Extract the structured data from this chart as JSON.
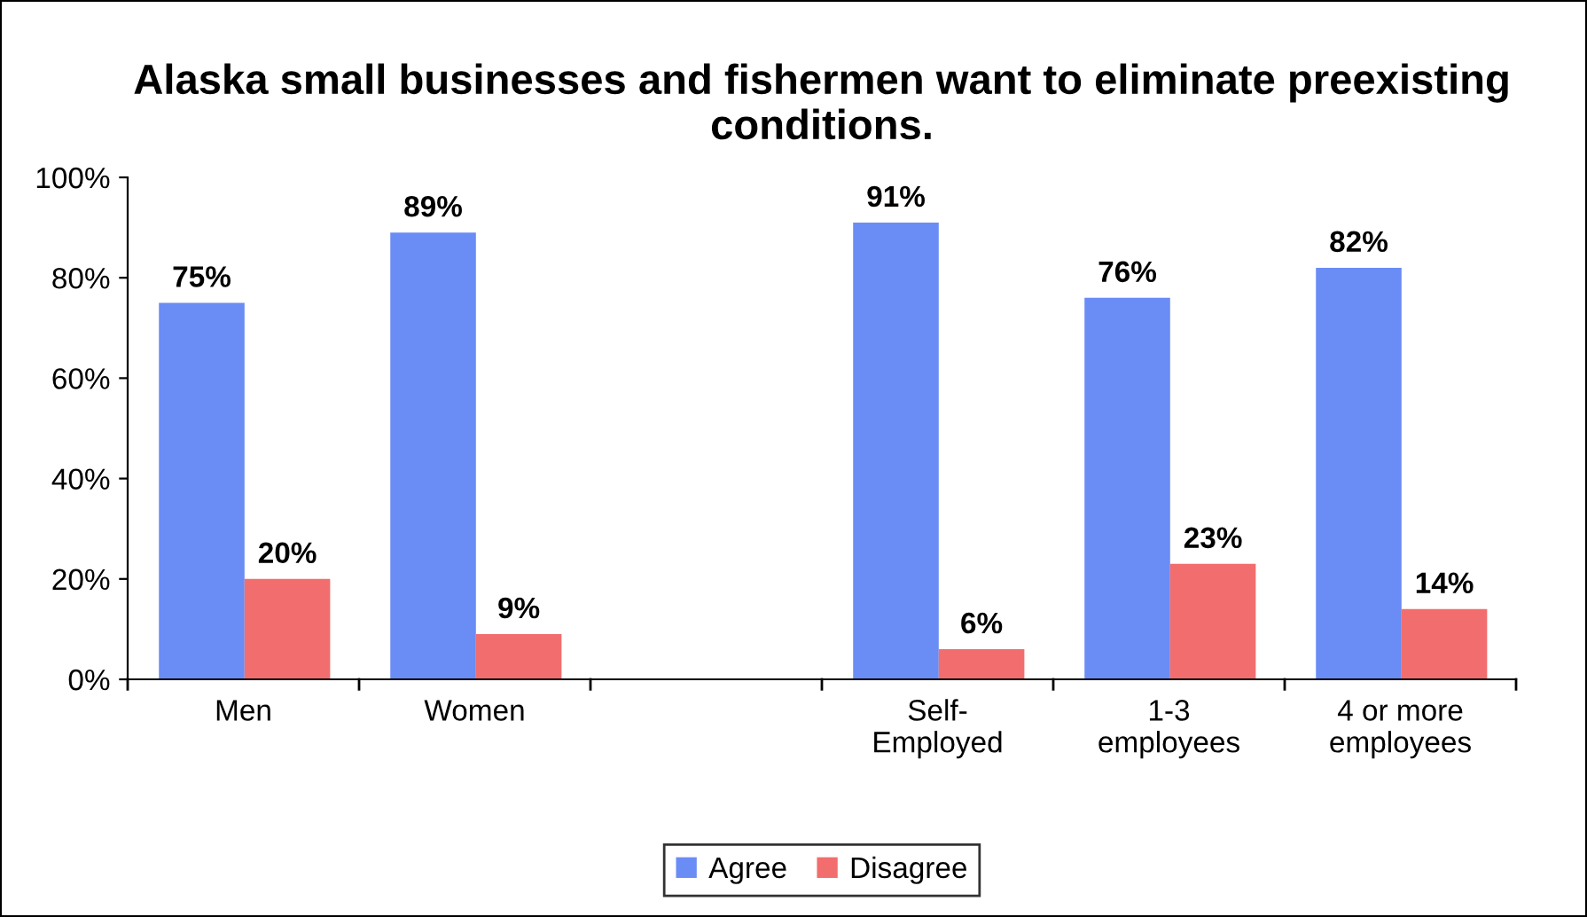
{
  "chart_data": {
    "type": "bar",
    "title": "Alaska small businesses and fishermen want to eliminate preexisting conditions.",
    "categories": [
      "Men",
      "Women",
      null,
      "Self-\nEmployed",
      "1-3\nemployees",
      "4 or more\nemployees"
    ],
    "series": [
      {
        "name": "Agree",
        "color": "#6a8cf5",
        "values": [
          75,
          89,
          null,
          91,
          76,
          82
        ],
        "value_labels": [
          "75%",
          "89%",
          null,
          "91%",
          "76%",
          "82%"
        ]
      },
      {
        "name": "Disagree",
        "color": "#f26d6d",
        "values": [
          20,
          9,
          null,
          6,
          23,
          14
        ],
        "value_labels": [
          "20%",
          "9%",
          null,
          "6%",
          "23%",
          "14%"
        ]
      }
    ],
    "ylim": [
      0,
      100
    ],
    "yticks": [
      {
        "value": 0,
        "label": "0%"
      },
      {
        "value": 20,
        "label": "20%"
      },
      {
        "value": 40,
        "label": "40%"
      },
      {
        "value": 60,
        "label": "60%"
      },
      {
        "value": 80,
        "label": "80%"
      },
      {
        "value": 100,
        "label": "100%"
      }
    ],
    "grid": false,
    "legend": "bottom"
  }
}
